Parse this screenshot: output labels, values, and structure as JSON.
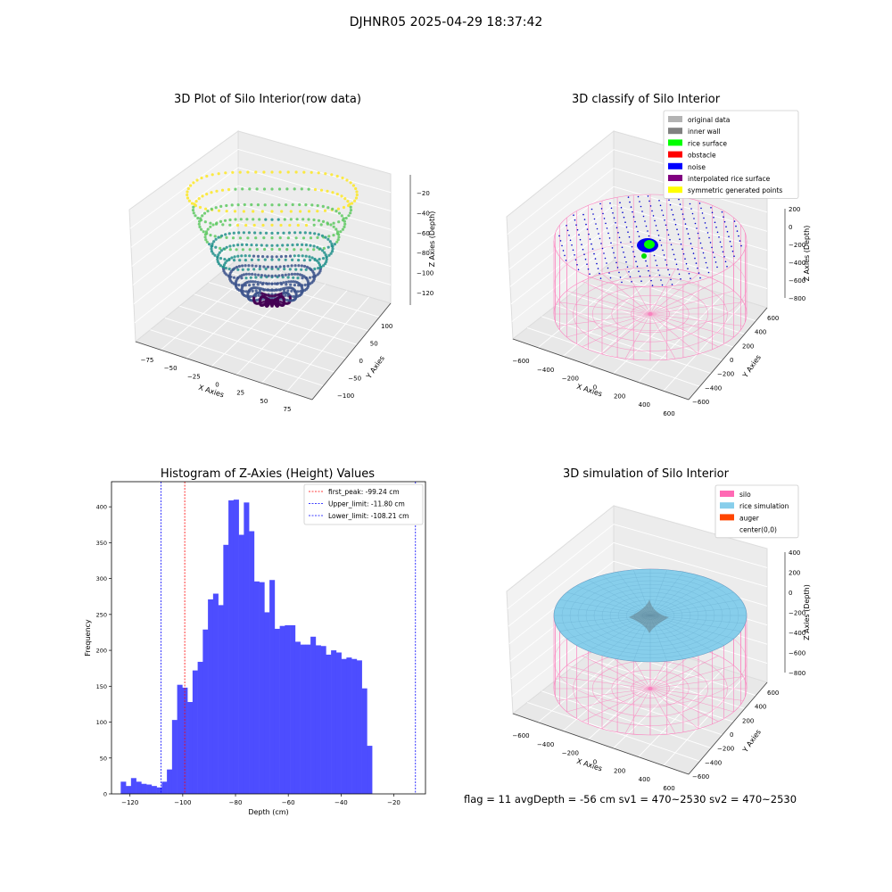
{
  "figure": {
    "suptitle": "DJHNR05 2025-04-29 18:37:42",
    "status": "flag = 11   avgDepth = -56 cm   sv1 = 470~2530  sv2 = 470~2530"
  },
  "chart_data": [
    {
      "id": "raw",
      "type": "scatter",
      "title": "3D Plot of Silo Interior(row data)",
      "xlabel": "X Axies",
      "ylabel": "Y Axies",
      "zlabel": "Z Axies (Depth)",
      "x_ticks": [
        "−75",
        "−50",
        "−25",
        "0",
        "25",
        "50",
        "75"
      ],
      "y_ticks": [
        "−100",
        "−50",
        "0",
        "50",
        "100"
      ],
      "z_ticks": [
        "−20",
        "−40",
        "−60",
        "−80",
        "−100",
        "−120"
      ],
      "colormap": "viridis",
      "zlim": [
        -125,
        -15
      ]
    },
    {
      "id": "classify",
      "type": "scatter",
      "title": "3D classify of Silo Interior",
      "xlabel": "X Axies",
      "ylabel": "Y Axies",
      "zlabel": "Z Axies (Depth)",
      "x_ticks": [
        "−600",
        "−400",
        "−200",
        "0",
        "200",
        "400",
        "600"
      ],
      "y_ticks": [
        "−600",
        "−400",
        "−200",
        "0",
        "200",
        "400",
        "600"
      ],
      "z_ticks": [
        "200",
        "0",
        "−200",
        "−400",
        "−600",
        "−800"
      ],
      "legend": [
        {
          "label": "original data",
          "color": "#b3b3b3"
        },
        {
          "label": "inner wall",
          "color": "#808080"
        },
        {
          "label": "rice surface",
          "color": "#00ff00"
        },
        {
          "label": "obstacle",
          "color": "#ff0000"
        },
        {
          "label": "noise",
          "color": "#0000ff"
        },
        {
          "label": "interpolated rice surface",
          "color": "#800080"
        },
        {
          "label": "symmetric generated points",
          "color": "#ffff00"
        }
      ]
    },
    {
      "id": "hist",
      "type": "bar",
      "title": "Histogram of Z-Axies (Height) Values",
      "xlabel": "Depth (cm)",
      "ylabel": "Frequency",
      "xlim": [
        -127,
        -8
      ],
      "ylim": [
        0,
        435
      ],
      "x_ticks": [
        -120,
        -100,
        -80,
        -60,
        -40,
        -20
      ],
      "y_ticks": [
        0,
        50,
        100,
        150,
        200,
        250,
        300,
        350,
        400
      ],
      "bar_color": "#4d4dff",
      "bin_start": -123.5,
      "bin_width": 1.944,
      "values": [
        17,
        11,
        22,
        17,
        14,
        13,
        11,
        9,
        17,
        34,
        103,
        152,
        148,
        128,
        172,
        184,
        229,
        271,
        279,
        263,
        347,
        409,
        410,
        361,
        406,
        366,
        296,
        295,
        253,
        298,
        230,
        234,
        235,
        235,
        212,
        208,
        208,
        219,
        207,
        206,
        194,
        200,
        197,
        188,
        190,
        188,
        186,
        147,
        67
      ],
      "lines": [
        {
          "label": "first_peak: -99.24 cm",
          "x": -99.24,
          "color": "#ff0000"
        },
        {
          "label": "Upper_limit: -11.80 cm",
          "x": -11.8,
          "color": "#0000ff"
        },
        {
          "label": "Lower_limit: -108.21 cm",
          "x": -108.21,
          "color": "#0000ff"
        }
      ]
    },
    {
      "id": "sim",
      "type": "scatter",
      "title": "3D simulation of Silo Interior",
      "xlabel": "X Axies",
      "ylabel": "Y Axies",
      "zlabel": "Z Axies (Depth)",
      "x_ticks": [
        "−600",
        "−400",
        "−200",
        "0",
        "200",
        "400",
        "600"
      ],
      "y_ticks": [
        "−600",
        "−400",
        "−200",
        "0",
        "200",
        "400",
        "600"
      ],
      "z_ticks": [
        "400",
        "200",
        "0",
        "−200",
        "−400",
        "−600",
        "−800"
      ],
      "legend": [
        {
          "label": "silo",
          "color": "#ff69b4"
        },
        {
          "label": "rice simulation",
          "color": "#87ceeb"
        },
        {
          "label": "auger",
          "color": "#ff4500"
        },
        {
          "label": "center(0,0)",
          "color": ""
        }
      ]
    }
  ]
}
